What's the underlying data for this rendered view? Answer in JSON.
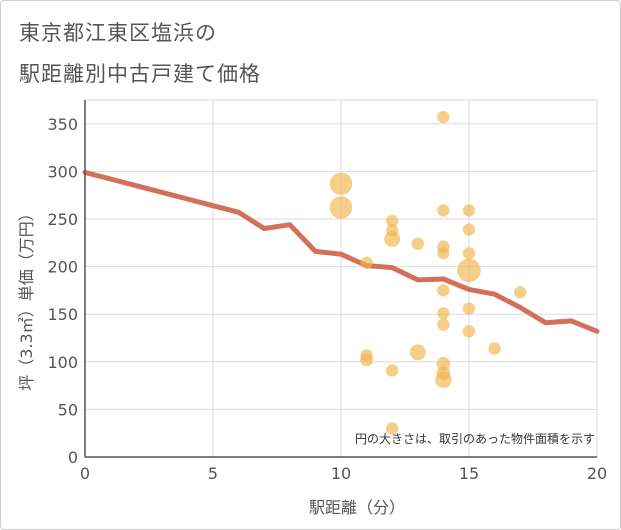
{
  "title_lines": [
    "東京都江東区塩浜の",
    "駅距離別中古戸建て価格"
  ],
  "chart_data": {
    "type": "scatter",
    "title": "東京都江東区塩浜の駅距離別中古戸建て価格",
    "xlabel": "駅距離（分）",
    "ylabel": "坪（3.3㎡）単価（万円）",
    "xlim": [
      0,
      20
    ],
    "ylim": [
      0,
      375
    ],
    "x_ticks": [
      "0",
      "5",
      "10",
      "15",
      "20"
    ],
    "y_ticks": [
      "0",
      "50",
      "100",
      "150",
      "200",
      "250",
      "300",
      "350"
    ],
    "grid": true,
    "note": "円の大きさは、取引のあった物件面積を示す",
    "colors": {
      "bubble": "#f0b44c",
      "line": "#d4705a",
      "grid": "#d5dde6",
      "axis": "#555555"
    },
    "bubbles": [
      {
        "x": 10,
        "y": 287,
        "size": 3.0
      },
      {
        "x": 10,
        "y": 262,
        "size": 3.0
      },
      {
        "x": 11,
        "y": 204,
        "size": 0.9
      },
      {
        "x": 11,
        "y": 107,
        "size": 0.9
      },
      {
        "x": 11,
        "y": 102,
        "size": 1.0
      },
      {
        "x": 12,
        "y": 248,
        "size": 0.9
      },
      {
        "x": 12,
        "y": 238,
        "size": 0.9
      },
      {
        "x": 12,
        "y": 229,
        "size": 1.5
      },
      {
        "x": 12,
        "y": 91,
        "size": 0.9
      },
      {
        "x": 12,
        "y": 30,
        "size": 0.9
      },
      {
        "x": 13,
        "y": 224,
        "size": 0.9
      },
      {
        "x": 13,
        "y": 110,
        "size": 1.5
      },
      {
        "x": 14,
        "y": 357,
        "size": 0.9
      },
      {
        "x": 14,
        "y": 259,
        "size": 0.9
      },
      {
        "x": 14,
        "y": 221,
        "size": 0.9
      },
      {
        "x": 14,
        "y": 214,
        "size": 0.9
      },
      {
        "x": 14,
        "y": 175,
        "size": 0.9
      },
      {
        "x": 14,
        "y": 151,
        "size": 0.9
      },
      {
        "x": 14,
        "y": 139,
        "size": 0.9
      },
      {
        "x": 14,
        "y": 98,
        "size": 1.1
      },
      {
        "x": 14,
        "y": 88,
        "size": 1.1
      },
      {
        "x": 14,
        "y": 81,
        "size": 1.6
      },
      {
        "x": 15,
        "y": 259,
        "size": 0.9
      },
      {
        "x": 15,
        "y": 239,
        "size": 0.9
      },
      {
        "x": 15,
        "y": 214,
        "size": 0.9
      },
      {
        "x": 15,
        "y": 196,
        "size": 3.3
      },
      {
        "x": 15,
        "y": 156,
        "size": 0.9
      },
      {
        "x": 15,
        "y": 132,
        "size": 0.9
      },
      {
        "x": 16,
        "y": 114,
        "size": 0.9
      },
      {
        "x": 17,
        "y": 173,
        "size": 0.9
      }
    ],
    "series": [
      {
        "type": "line",
        "points": [
          [
            0,
            299
          ],
          [
            1,
            292
          ],
          [
            2,
            285
          ],
          [
            3,
            278
          ],
          [
            4,
            271
          ],
          [
            5,
            264
          ],
          [
            6,
            257
          ],
          [
            7,
            240
          ],
          [
            8,
            244
          ],
          [
            9,
            216
          ],
          [
            10,
            213
          ],
          [
            11,
            201
          ],
          [
            12,
            199
          ],
          [
            13,
            186
          ],
          [
            14,
            187
          ],
          [
            15,
            176
          ],
          [
            16,
            171
          ],
          [
            17,
            157
          ],
          [
            18,
            141
          ],
          [
            19,
            143
          ],
          [
            20,
            132
          ]
        ]
      }
    ]
  }
}
